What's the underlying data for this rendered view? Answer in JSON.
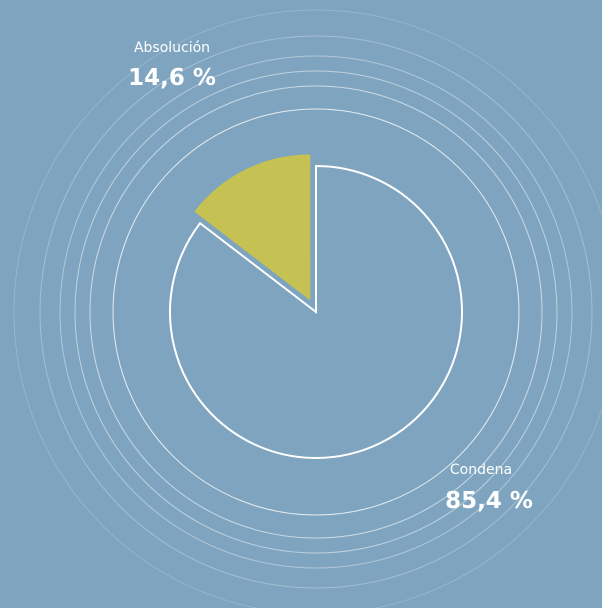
{
  "chart_data": {
    "type": "pie",
    "categories": [
      "Absolución",
      "Condena"
    ],
    "values": [
      14.6,
      85.4
    ],
    "value_labels": [
      "14,6 %",
      "85,4 %"
    ],
    "colors": [
      "#c5c152",
      "#7ea4bf"
    ]
  }
}
